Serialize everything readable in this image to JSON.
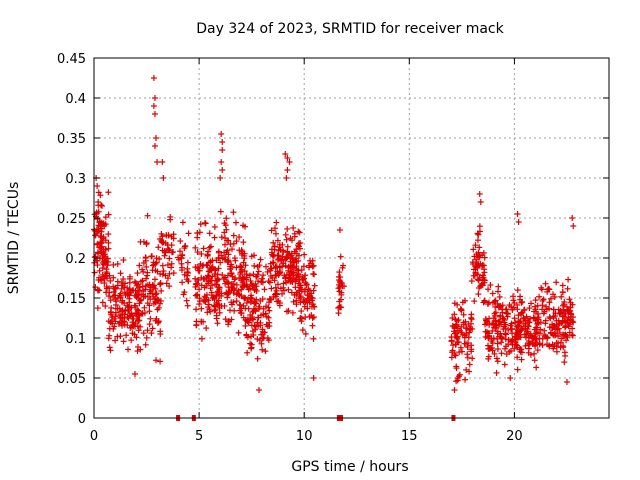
{
  "chart_data": {
    "type": "scatter",
    "title": "Day 324 of 2023, SRMTID for receiver mack",
    "xlabel": "GPS time / hours",
    "ylabel": "SRMTID / TECUs",
    "xlim": [
      0,
      24.5
    ],
    "ylim": [
      0,
      0.45
    ],
    "xticks": [
      0,
      5,
      10,
      15,
      20
    ],
    "yticks": [
      0,
      0.05,
      0.1,
      0.15,
      0.2,
      0.25,
      0.3,
      0.35,
      0.4,
      0.45
    ],
    "grid": true,
    "marker": "+",
    "color": "#e00000",
    "series": [
      {
        "name": "SRMTID",
        "clusters": [
          {
            "x": [
              0.0,
              0.7
            ],
            "center": 0.21,
            "spread": 0.045,
            "n": 110
          },
          {
            "x": [
              0.7,
              2.2
            ],
            "center": 0.14,
            "spread": 0.035,
            "n": 170
          },
          {
            "x": [
              2.2,
              3.2
            ],
            "center": 0.16,
            "spread": 0.05,
            "n": 100
          },
          {
            "x": [
              3.2,
              3.8
            ],
            "center": 0.21,
            "spread": 0.03,
            "n": 40
          },
          {
            "x": [
              4.0,
              4.5
            ],
            "center": 0.19,
            "spread": 0.035,
            "n": 30
          },
          {
            "x": [
              4.8,
              6.0
            ],
            "center": 0.165,
            "spread": 0.045,
            "n": 140
          },
          {
            "x": [
              6.0,
              7.2
            ],
            "center": 0.18,
            "spread": 0.045,
            "n": 140
          },
          {
            "x": [
              7.2,
              8.4
            ],
            "center": 0.14,
            "spread": 0.04,
            "n": 130
          },
          {
            "x": [
              8.4,
              9.8
            ],
            "center": 0.19,
            "spread": 0.04,
            "n": 170
          },
          {
            "x": [
              9.8,
              10.5
            ],
            "center": 0.155,
            "spread": 0.04,
            "n": 70
          },
          {
            "x": [
              11.6,
              11.9
            ],
            "center": 0.165,
            "spread": 0.025,
            "n": 25
          },
          {
            "x": [
              17.0,
              18.0
            ],
            "center": 0.1,
            "spread": 0.035,
            "n": 90
          },
          {
            "x": [
              18.0,
              18.6
            ],
            "center": 0.19,
            "spread": 0.035,
            "n": 60
          },
          {
            "x": [
              18.6,
              19.5
            ],
            "center": 0.12,
            "spread": 0.03,
            "n": 90
          },
          {
            "x": [
              19.5,
              21.0
            ],
            "center": 0.11,
            "spread": 0.03,
            "n": 150
          },
          {
            "x": [
              21.0,
              22.8
            ],
            "center": 0.12,
            "spread": 0.03,
            "n": 170
          }
        ],
        "peaks": [
          [
            0.1,
            0.3
          ],
          [
            0.15,
            0.29
          ],
          [
            0.2,
            0.27
          ],
          [
            2.85,
            0.425
          ],
          [
            2.9,
            0.4
          ],
          [
            2.85,
            0.39
          ],
          [
            2.9,
            0.38
          ],
          [
            2.95,
            0.35
          ],
          [
            2.9,
            0.34
          ],
          [
            3.0,
            0.32
          ],
          [
            3.25,
            0.32
          ],
          [
            3.3,
            0.3
          ],
          [
            6.05,
            0.355
          ],
          [
            6.1,
            0.345
          ],
          [
            6.1,
            0.335
          ],
          [
            6.05,
            0.32
          ],
          [
            6.1,
            0.31
          ],
          [
            6.0,
            0.3
          ],
          [
            9.1,
            0.33
          ],
          [
            9.2,
            0.325
          ],
          [
            9.3,
            0.32
          ],
          [
            9.2,
            0.31
          ],
          [
            9.15,
            0.3
          ],
          [
            11.7,
            0.235
          ],
          [
            18.35,
            0.28
          ],
          [
            18.4,
            0.27
          ],
          [
            20.15,
            0.255
          ],
          [
            20.2,
            0.245
          ],
          [
            22.75,
            0.25
          ],
          [
            22.8,
            0.24
          ],
          [
            7.85,
            0.035
          ],
          [
            17.15,
            0.035
          ],
          [
            10.45,
            0.05
          ],
          [
            19.8,
            0.05
          ],
          [
            22.5,
            0.045
          ],
          [
            1.95,
            0.055
          ]
        ]
      }
    ],
    "zero_markers": [
      4.0,
      4.75,
      11.65,
      11.75,
      17.1
    ]
  }
}
